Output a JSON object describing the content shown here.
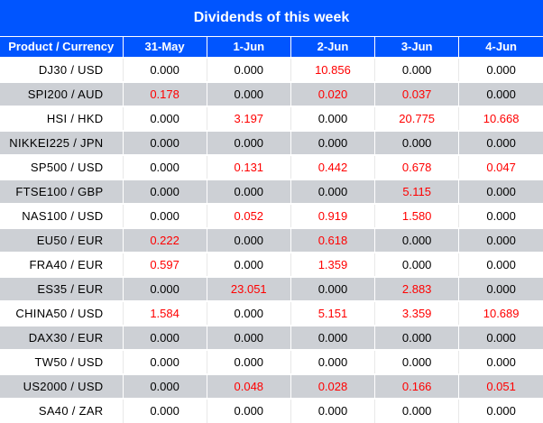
{
  "title": "Dividends of this week",
  "headers": [
    "Product / Currency",
    "31-May",
    "1-Jun",
    "2-Jun",
    "3-Jun",
    "4-Jun"
  ],
  "colors": {
    "header_bg": "#0055ff",
    "alt_row": "#cdd0d5",
    "nonzero": "#ff0000"
  },
  "rows": [
    {
      "product": "DJ30 / USD",
      "values": [
        "0.000",
        "0.000",
        "10.856",
        "0.000",
        "0.000"
      ]
    },
    {
      "product": "SPI200 / AUD",
      "values": [
        "0.178",
        "0.000",
        "0.020",
        "0.037",
        "0.000"
      ]
    },
    {
      "product": "HSI / HKD",
      "values": [
        "0.000",
        "3.197",
        "0.000",
        "20.775",
        "10.668"
      ]
    },
    {
      "product": "NIKKEI225 / JPN",
      "values": [
        "0.000",
        "0.000",
        "0.000",
        "0.000",
        "0.000"
      ]
    },
    {
      "product": "SP500 / USD",
      "values": [
        "0.000",
        "0.131",
        "0.442",
        "0.678",
        "0.047"
      ]
    },
    {
      "product": "FTSE100 / GBP",
      "values": [
        "0.000",
        "0.000",
        "0.000",
        "5.115",
        "0.000"
      ]
    },
    {
      "product": "NAS100 / USD",
      "values": [
        "0.000",
        "0.052",
        "0.919",
        "1.580",
        "0.000"
      ]
    },
    {
      "product": "EU50 / EUR",
      "values": [
        "0.222",
        "0.000",
        "0.618",
        "0.000",
        "0.000"
      ]
    },
    {
      "product": "FRA40 / EUR",
      "values": [
        "0.597",
        "0.000",
        "1.359",
        "0.000",
        "0.000"
      ]
    },
    {
      "product": "ES35 / EUR",
      "values": [
        "0.000",
        "23.051",
        "0.000",
        "2.883",
        "0.000"
      ]
    },
    {
      "product": "CHINA50 / USD",
      "values": [
        "1.584",
        "0.000",
        "5.151",
        "3.359",
        "10.689"
      ]
    },
    {
      "product": "DAX30 / EUR",
      "values": [
        "0.000",
        "0.000",
        "0.000",
        "0.000",
        "0.000"
      ]
    },
    {
      "product": "TW50 / USD",
      "values": [
        "0.000",
        "0.000",
        "0.000",
        "0.000",
        "0.000"
      ]
    },
    {
      "product": "US2000 / USD",
      "values": [
        "0.000",
        "0.048",
        "0.028",
        "0.166",
        "0.051"
      ]
    },
    {
      "product": "SA40 / ZAR",
      "values": [
        "0.000",
        "0.000",
        "0.000",
        "0.000",
        "0.000"
      ]
    }
  ]
}
